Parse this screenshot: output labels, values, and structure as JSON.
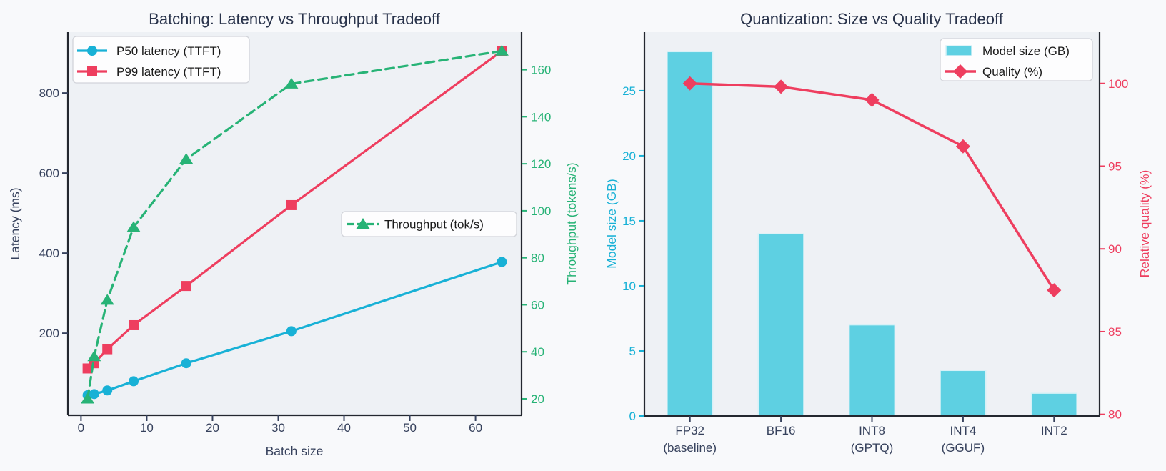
{
  "palette": {
    "figure_bg": "#f8f9fb",
    "plot_bg": "#eef1f5",
    "spine": "#23272f",
    "title_text": "#29334b",
    "tick_text_dark": "#36415c",
    "legend_text": "#1a1a1a",
    "legend_bg": "#fdfdfe",
    "legend_border": "#d2d4da",
    "cyan_line": "#18b1d6",
    "bar_cyan": "#5ed0e2",
    "bar_edge": "#d7f1f7",
    "red_line": "#ee3e5f",
    "green_line": "#27b376"
  },
  "chart_data": [
    {
      "type": "line",
      "title": "Batching: Latency vs Throughput Tradeoff",
      "xlabel": "Batch size",
      "ylabel_left": "Latency (ms)",
      "ylabel_right": "Throughput (tokens/s)",
      "x": [
        1,
        2,
        4,
        8,
        16,
        32,
        64
      ],
      "x_ticks": [
        0,
        10,
        20,
        30,
        40,
        50,
        60
      ],
      "y_ticks_left": [
        200,
        400,
        600,
        800
      ],
      "y_ticks_right": [
        20,
        40,
        60,
        80,
        100,
        120,
        140,
        160
      ],
      "xlim": [
        -2,
        67
      ],
      "ylim_left": [
        -5,
        952
      ],
      "ylim_right": [
        13,
        176
      ],
      "grid": false,
      "series": [
        {
          "name": "P50 latency (TTFT)",
          "axis": "left",
          "marker": "circle",
          "linestyle": "solid",
          "color": "#18b1d6",
          "values": [
            45,
            48,
            57,
            80,
            125,
            205,
            378
          ]
        },
        {
          "name": "P99 latency (TTFT)",
          "axis": "left",
          "marker": "square",
          "linestyle": "solid",
          "color": "#ee3e5f",
          "values": [
            112,
            125,
            160,
            220,
            318,
            520,
            905
          ]
        },
        {
          "name": "Throughput (tok/s)",
          "axis": "right",
          "marker": "triangle",
          "linestyle": "dashed",
          "color": "#27b376",
          "values": [
            20,
            38,
            62,
            93,
            122,
            154,
            168
          ]
        }
      ],
      "legends": [
        {
          "entries": [
            "P50 latency (TTFT)",
            "P99 latency (TTFT)"
          ],
          "position": "upper left"
        },
        {
          "entries": [
            "Throughput (tok/s)"
          ],
          "position": "center right"
        }
      ]
    },
    {
      "type": "bar",
      "title": "Quantization: Size vs Quality Tradeoff",
      "xlabel": "",
      "ylabel_left": "Model size (GB)",
      "ylabel_right": "Relative quality (%)",
      "categories": [
        "FP32\n(baseline)",
        "BF16",
        "INT8\n(GPTQ)",
        "INT4\n(GGUF)",
        "INT2"
      ],
      "y_ticks_left": [
        0,
        5,
        10,
        15,
        20,
        25
      ],
      "y_ticks_right": [
        80,
        85,
        90,
        95,
        100
      ],
      "ylim_left": [
        0,
        29.5
      ],
      "ylim_right": [
        79.9,
        103.1
      ],
      "grid": false,
      "bar_series": {
        "name": "Model size (GB)",
        "axis": "left",
        "color": "#5ed0e2",
        "values": [
          28,
          14,
          7,
          3.5,
          1.75
        ]
      },
      "line_series": {
        "name": "Quality (%)",
        "axis": "right",
        "marker": "diamond",
        "color": "#ee3e5f",
        "values": [
          100,
          99.8,
          99.0,
          96.2,
          87.5
        ]
      },
      "legend": {
        "entries": [
          "Model size (GB)",
          "Quality (%)"
        ],
        "position": "upper right"
      }
    }
  ]
}
